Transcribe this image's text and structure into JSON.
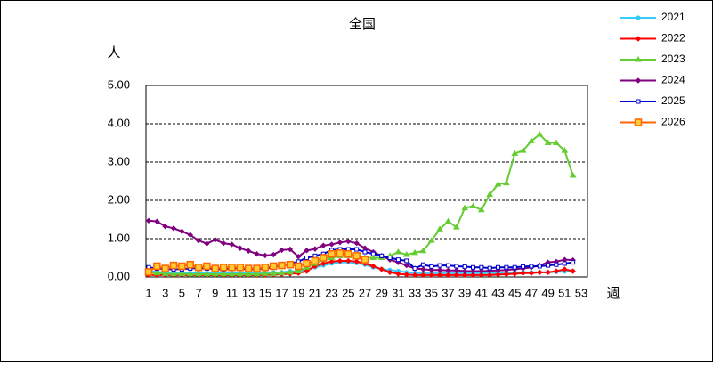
{
  "chart_data": {
    "type": "line",
    "title": "全国",
    "y_label": "人",
    "x_label": "週",
    "categories": [
      1,
      null,
      3,
      null,
      5,
      null,
      7,
      null,
      9,
      null,
      11,
      null,
      13,
      null,
      15,
      null,
      17,
      null,
      19,
      null,
      21,
      null,
      23,
      null,
      25,
      null,
      27,
      null,
      29,
      null,
      31,
      null,
      33,
      null,
      35,
      null,
      37,
      null,
      39,
      null,
      41,
      null,
      43,
      null,
      45,
      null,
      47,
      null,
      49,
      null,
      51,
      null,
      53
    ],
    "ylim": [
      0,
      5
    ],
    "yticks": [
      {
        "value": 0,
        "label": "0.00"
      },
      {
        "value": 1,
        "label": "1.00"
      },
      {
        "value": 2,
        "label": "2.00"
      },
      {
        "value": 3,
        "label": "3.00"
      },
      {
        "value": 4,
        "label": "4.00"
      },
      {
        "value": 5,
        "label": "5.00"
      }
    ],
    "grid": true,
    "legend": "right",
    "series": [
      {
        "name": "2021",
        "color": "#33ccff",
        "marker": "circle",
        "values": [
          0.15,
          0.13,
          0.12,
          0.1,
          0.1,
          0.1,
          0.1,
          0.1,
          0.1,
          0.1,
          0.1,
          0.1,
          0.1,
          0.1,
          0.1,
          0.12,
          0.12,
          0.15,
          0.15,
          0.2,
          0.25,
          0.3,
          0.35,
          0.38,
          0.38,
          0.36,
          0.32,
          0.25,
          0.2,
          0.18,
          0.15,
          0.12,
          0.1,
          0.1,
          0.1,
          0.1,
          0.1,
          0.1,
          0.1,
          0.1,
          0.1,
          0.1,
          0.1,
          0.1,
          0.12,
          0.12,
          0.12,
          0.12,
          0.12,
          0.13,
          0.14,
          0.15,
          null
        ]
      },
      {
        "name": "2022",
        "color": "#ff0000",
        "marker": "diamond",
        "values": [
          0.05,
          0.05,
          0.05,
          0.05,
          0.05,
          0.05,
          0.05,
          0.05,
          0.05,
          0.05,
          0.05,
          0.05,
          0.05,
          0.05,
          0.05,
          0.06,
          0.07,
          0.08,
          0.1,
          0.15,
          0.28,
          0.35,
          0.4,
          0.42,
          0.42,
          0.4,
          0.35,
          0.28,
          0.2,
          0.12,
          0.08,
          0.06,
          0.05,
          0.05,
          0.05,
          0.05,
          0.05,
          0.05,
          0.05,
          0.05,
          0.05,
          0.05,
          0.06,
          0.07,
          0.08,
          0.1,
          0.1,
          0.12,
          0.12,
          0.15,
          0.2,
          0.15,
          null
        ]
      },
      {
        "name": "2023",
        "color": "#66cc33",
        "marker": "triangle",
        "values": [
          0.12,
          0.1,
          0.08,
          0.07,
          0.08,
          0.07,
          0.07,
          0.07,
          0.07,
          0.07,
          0.07,
          0.07,
          0.07,
          0.07,
          0.08,
          0.08,
          0.1,
          0.12,
          0.15,
          0.25,
          0.35,
          0.45,
          0.5,
          0.55,
          0.55,
          0.55,
          0.5,
          0.5,
          0.5,
          0.55,
          0.65,
          0.58,
          0.63,
          0.68,
          0.95,
          1.25,
          1.45,
          1.3,
          1.8,
          1.85,
          1.75,
          2.15,
          2.42,
          2.45,
          3.22,
          3.3,
          3.55,
          3.72,
          3.5,
          3.5,
          3.3,
          2.65,
          null
        ]
      },
      {
        "name": "2024",
        "color": "#800080",
        "marker": "diamond",
        "values": [
          1.47,
          1.45,
          1.32,
          1.27,
          1.19,
          1.1,
          0.95,
          0.87,
          0.97,
          0.88,
          0.85,
          0.75,
          0.68,
          0.6,
          0.56,
          0.58,
          0.7,
          0.72,
          0.53,
          0.69,
          0.73,
          0.82,
          0.85,
          0.9,
          0.93,
          0.88,
          0.75,
          0.65,
          0.55,
          0.45,
          0.38,
          0.3,
          0.22,
          0.2,
          0.18,
          0.18,
          0.17,
          0.17,
          0.15,
          0.15,
          0.15,
          0.16,
          0.17,
          0.18,
          0.2,
          0.22,
          0.25,
          0.3,
          0.38,
          0.4,
          0.45,
          0.44,
          null
        ]
      },
      {
        "name": "2025",
        "color": "#0000cc",
        "marker": "open-square",
        "values": [
          0.25,
          0.22,
          0.2,
          0.2,
          0.2,
          0.22,
          0.23,
          0.22,
          0.2,
          0.2,
          0.22,
          0.22,
          0.2,
          0.2,
          0.22,
          0.25,
          0.3,
          0.35,
          0.4,
          0.5,
          0.55,
          0.6,
          0.7,
          0.72,
          0.72,
          0.72,
          0.65,
          0.6,
          0.55,
          0.5,
          0.45,
          0.42,
          0.22,
          0.32,
          0.27,
          0.3,
          0.3,
          0.28,
          0.27,
          0.25,
          0.25,
          0.23,
          0.25,
          0.25,
          0.25,
          0.27,
          0.28,
          0.28,
          0.3,
          0.32,
          0.35,
          0.38,
          null
        ]
      },
      {
        "name": "2026",
        "color": "#ff6600",
        "marker": "square",
        "values": [
          0.13,
          0.28,
          0.22,
          0.3,
          0.28,
          0.32,
          0.25,
          0.28,
          0.22,
          0.25,
          0.25,
          0.25,
          0.22,
          0.22,
          0.25,
          0.28,
          0.3,
          0.32,
          0.28,
          0.35,
          0.42,
          0.5,
          0.6,
          0.62,
          0.6,
          0.55,
          0.45,
          null,
          null,
          null,
          null,
          null,
          null,
          null,
          null,
          null,
          null,
          null,
          null,
          null,
          null,
          null,
          null,
          null,
          null,
          null,
          null,
          null,
          null,
          null,
          null,
          null,
          null
        ]
      }
    ]
  }
}
